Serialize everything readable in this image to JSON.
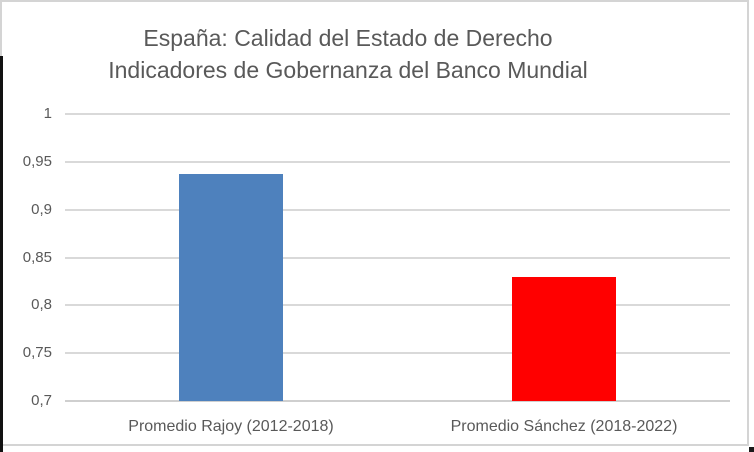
{
  "window": {
    "background_color": "#ffffff",
    "frame_border_color": "#d4d4d4",
    "left_edge_color": "#121212"
  },
  "chart_data": {
    "type": "bar",
    "title": "España: Calidad del Estado de Derecho",
    "subtitle": "Indicadores de Gobernanza del Banco Mundial",
    "categories": [
      "Promedio Rajoy (2012-2018)",
      "Promedio Sánchez (2018-2022)"
    ],
    "values": [
      0.937,
      0.83
    ],
    "bar_colors": [
      "#4E81BD",
      "#FF0000"
    ],
    "xlabel": "",
    "ylabel": "",
    "ylim": [
      0.7,
      1.0
    ],
    "ytick_step": 0.05,
    "ytick_labels_top_to_bottom": [
      "1",
      "0,95",
      "0,9",
      "0,85",
      "0,8",
      "0,75",
      "0,7"
    ],
    "decimal_separator": ",",
    "grid": true,
    "gridline_color": "#D9D9D9",
    "legend": false,
    "text_color": "#595959"
  }
}
